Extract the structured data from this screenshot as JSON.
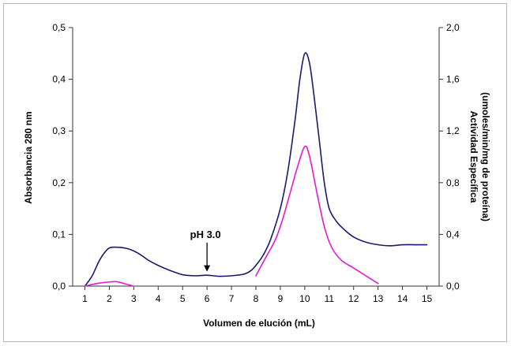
{
  "chart_data": {
    "type": "line",
    "title": "",
    "xlabel": "Volumen de elución (mL)",
    "ylabel": "Absorbancia 280 nm",
    "y2label": [
      "Actividad Específica",
      "(umoles/min/mg de proteína)"
    ],
    "xlim": [
      0.5,
      15.5
    ],
    "ylim": [
      0,
      0.5
    ],
    "y2lim": [
      0,
      2.0
    ],
    "x_ticks": [
      "1",
      "2",
      "3",
      "4",
      "5",
      "6",
      "7",
      "8",
      "9",
      "10",
      "11",
      "12",
      "13",
      "14",
      "15"
    ],
    "y_ticks": [
      "0,0",
      "0,1",
      "0,2",
      "0,3",
      "0,4",
      "0,5"
    ],
    "y2_ticks": [
      "0,0",
      "0,4",
      "0,8",
      "1,2",
      "1,6",
      "2,0"
    ],
    "grid": false,
    "series": [
      {
        "axis": "left",
        "color": "#1a1a6e",
        "x": [
          1.0,
          1.3,
          1.6,
          1.9,
          2.1,
          2.4,
          2.7,
          3.0,
          3.3,
          3.6,
          4.0,
          4.5,
          5.0,
          5.5,
          6.0,
          6.5,
          7.0,
          7.5,
          7.8,
          8.0,
          8.3,
          8.6,
          9.0,
          9.3,
          9.6,
          9.8,
          10.0,
          10.2,
          10.4,
          10.6,
          10.8,
          11.0,
          11.3,
          11.6,
          12.0,
          12.5,
          13.0,
          13.5,
          14.0,
          14.5,
          15.0
        ],
        "values": [
          0.0,
          0.02,
          0.05,
          0.07,
          0.075,
          0.075,
          0.073,
          0.068,
          0.06,
          0.05,
          0.04,
          0.03,
          0.022,
          0.02,
          0.021,
          0.019,
          0.02,
          0.023,
          0.03,
          0.04,
          0.06,
          0.09,
          0.15,
          0.22,
          0.32,
          0.4,
          0.45,
          0.43,
          0.36,
          0.28,
          0.2,
          0.15,
          0.125,
          0.11,
          0.095,
          0.085,
          0.08,
          0.078,
          0.08,
          0.08,
          0.08
        ]
      },
      {
        "axis": "right",
        "color": "#e619d0",
        "x": [
          1.0,
          1.5,
          2.0,
          2.3,
          2.6,
          3.0
        ],
        "values": [
          0.0,
          0.02,
          0.032,
          0.034,
          0.02,
          0.0
        ]
      },
      {
        "axis": "right",
        "color": "#e619d0",
        "x": [
          8.0,
          8.4,
          8.8,
          9.1,
          9.4,
          9.7,
          10.0,
          10.2,
          10.5,
          10.8,
          11.1,
          11.5,
          12.0,
          12.5,
          13.0
        ],
        "values": [
          0.08,
          0.22,
          0.36,
          0.52,
          0.72,
          0.92,
          1.08,
          1.0,
          0.72,
          0.46,
          0.3,
          0.2,
          0.14,
          0.08,
          0.02
        ]
      }
    ],
    "annotations": [
      {
        "text": "pH 3.0",
        "x": 6.0,
        "y": 0.078,
        "arrow_to_y": 0.028
      }
    ]
  }
}
